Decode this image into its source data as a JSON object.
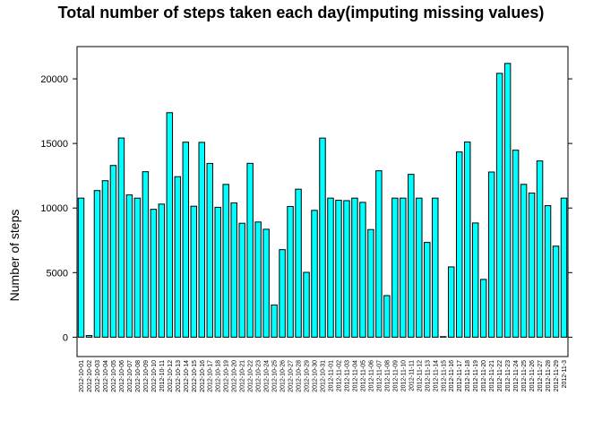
{
  "chart_data": {
    "type": "bar",
    "title": "Total number of steps taken each day(imputing missing values)",
    "xlabel": "",
    "ylabel": "Number of steps",
    "ylim": [
      -1500,
      22500
    ],
    "yticks": [
      0,
      5000,
      10000,
      15000,
      20000
    ],
    "grid": false,
    "colors": {
      "bar_fill": "#00FFFF",
      "bar_stroke": "#000000",
      "axis": "#000000"
    },
    "categories": [
      "2012-10-01",
      "2012-10-02",
      "2012-10-03",
      "2012-10-04",
      "2012-10-05",
      "2012-10-06",
      "2012-10-07",
      "2012-10-08",
      "2012-10-09",
      "2012-10-10",
      "2012-10-11",
      "2012-10-12",
      "2012-10-13",
      "2012-10-14",
      "2012-10-15",
      "2012-10-16",
      "2012-10-17",
      "2012-10-18",
      "2012-10-19",
      "2012-10-20",
      "2012-10-21",
      "2012-10-22",
      "2012-10-23",
      "2012-10-24",
      "2012-10-25",
      "2012-10-26",
      "2012-10-27",
      "2012-10-28",
      "2012-10-29",
      "2012-10-30",
      "2012-10-31",
      "2012-11-01",
      "2012-11-02",
      "2012-11-03",
      "2012-11-04",
      "2012-11-05",
      "2012-11-06",
      "2012-11-07",
      "2012-11-08",
      "2012-11-09",
      "2012-11-10",
      "2012-11-11",
      "2012-11-12",
      "2012-11-13",
      "2012-11-14",
      "2012-11-15",
      "2012-11-16",
      "2012-11-17",
      "2012-11-18",
      "2012-11-19",
      "2012-11-20",
      "2012-11-21",
      "2012-11-22",
      "2012-11-23",
      "2012-11-24",
      "2012-11-25",
      "2012-11-26",
      "2012-11-27",
      "2012-11-28",
      "2012-11-29",
      "2012-11-3"
    ],
    "values": [
      10766,
      126,
      11352,
      12116,
      13294,
      15420,
      11015,
      10766,
      12811,
      9900,
      10304,
      17382,
      12426,
      15098,
      10139,
      15084,
      13452,
      10056,
      11829,
      10395,
      8821,
      13460,
      8918,
      8355,
      2492,
      6778,
      10119,
      11458,
      5018,
      9819,
      15414,
      10766,
      10600,
      10571,
      10766,
      10439,
      8334,
      12883,
      3219,
      10766,
      10766,
      12608,
      10765,
      7336,
      10766,
      41,
      5441,
      14339,
      15110,
      8841,
      4472,
      12787,
      20427,
      21194,
      14478,
      11834,
      11162,
      13646,
      10183,
      7047,
      10766
    ]
  }
}
